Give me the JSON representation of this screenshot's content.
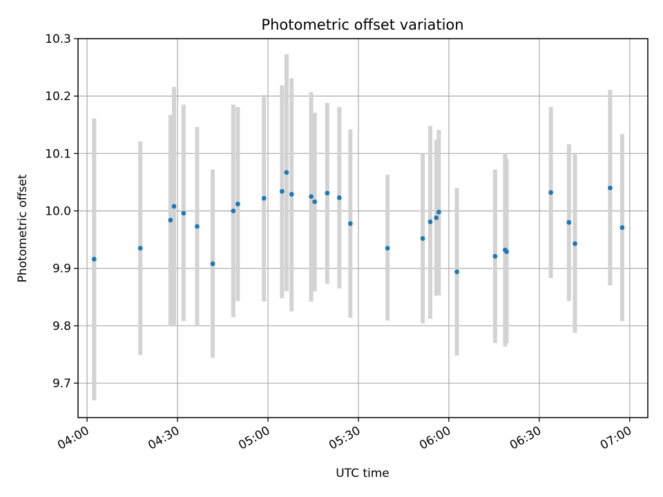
{
  "chart_data": {
    "type": "scatter",
    "title": "Photometric offset variation",
    "xlabel": "UTC time",
    "ylabel": "Photometric offset",
    "grid": true,
    "xlim": [
      "03:57",
      "07:06"
    ],
    "ylim": [
      9.64,
      10.3
    ],
    "x_ticks": [
      "04:00",
      "04:30",
      "05:00",
      "05:30",
      "06:00",
      "06:30",
      "07:00"
    ],
    "y_ticks": [
      "9.7",
      "9.8",
      "9.9",
      "10.0",
      "10.1",
      "10.2",
      "10.3"
    ],
    "colors": {
      "points": "#1f77b4",
      "error_bars": "#d3d3d3",
      "grid": "#b0b0b0"
    },
    "points": [
      {
        "time": "04:02:20",
        "offset": 9.916,
        "err_low": 9.67,
        "err_high": 10.161
      },
      {
        "time": "04:17:40",
        "offset": 9.935,
        "err_low": 9.749,
        "err_high": 10.121
      },
      {
        "time": "04:27:40",
        "offset": 9.984,
        "err_low": 9.8,
        "err_high": 10.167
      },
      {
        "time": "04:28:50",
        "offset": 10.008,
        "err_low": 9.8,
        "err_high": 10.216
      },
      {
        "time": "04:32:00",
        "offset": 9.996,
        "err_low": 9.808,
        "err_high": 10.185
      },
      {
        "time": "04:36:30",
        "offset": 9.973,
        "err_low": 9.8,
        "err_high": 10.146
      },
      {
        "time": "04:41:40",
        "offset": 9.908,
        "err_low": 9.744,
        "err_high": 10.072
      },
      {
        "time": "04:48:30",
        "offset": 10.0,
        "err_low": 9.815,
        "err_high": 10.185
      },
      {
        "time": "04:50:00",
        "offset": 10.012,
        "err_low": 9.843,
        "err_high": 10.181
      },
      {
        "time": "04:58:40",
        "offset": 10.022,
        "err_low": 9.842,
        "err_high": 10.202
      },
      {
        "time": "05:04:40",
        "offset": 10.034,
        "err_low": 9.848,
        "err_high": 10.219
      },
      {
        "time": "05:06:10",
        "offset": 10.067,
        "err_low": 9.86,
        "err_high": 10.273
      },
      {
        "time": "05:07:50",
        "offset": 10.029,
        "err_low": 9.825,
        "err_high": 10.231
      },
      {
        "time": "05:14:20",
        "offset": 10.025,
        "err_low": 9.842,
        "err_high": 10.207
      },
      {
        "time": "05:15:30",
        "offset": 10.016,
        "err_low": 9.86,
        "err_high": 10.171
      },
      {
        "time": "05:19:40",
        "offset": 10.031,
        "err_low": 9.873,
        "err_high": 10.188
      },
      {
        "time": "05:23:40",
        "offset": 10.023,
        "err_low": 9.865,
        "err_high": 10.181
      },
      {
        "time": "05:27:20",
        "offset": 9.978,
        "err_low": 9.814,
        "err_high": 10.142
      },
      {
        "time": "05:39:40",
        "offset": 9.935,
        "err_low": 9.809,
        "err_high": 10.063
      },
      {
        "time": "05:51:20",
        "offset": 9.952,
        "err_low": 9.804,
        "err_high": 10.1
      },
      {
        "time": "05:53:50",
        "offset": 9.981,
        "err_low": 9.812,
        "err_high": 10.148
      },
      {
        "time": "05:55:50",
        "offset": 9.988,
        "err_low": 9.852,
        "err_high": 10.124
      },
      {
        "time": "05:56:40",
        "offset": 9.998,
        "err_low": 9.853,
        "err_high": 10.141
      },
      {
        "time": "06:02:40",
        "offset": 9.894,
        "err_low": 9.748,
        "err_high": 10.04
      },
      {
        "time": "06:15:20",
        "offset": 9.921,
        "err_low": 9.77,
        "err_high": 10.072
      },
      {
        "time": "06:18:40",
        "offset": 9.932,
        "err_low": 9.764,
        "err_high": 10.101
      },
      {
        "time": "06:19:10",
        "offset": 9.929,
        "err_low": 9.77,
        "err_high": 10.09
      },
      {
        "time": "06:33:50",
        "offset": 10.032,
        "err_low": 9.883,
        "err_high": 10.181
      },
      {
        "time": "06:39:50",
        "offset": 9.98,
        "err_low": 9.843,
        "err_high": 10.116
      },
      {
        "time": "06:41:50",
        "offset": 9.943,
        "err_low": 9.788,
        "err_high": 10.099
      },
      {
        "time": "06:53:30",
        "offset": 10.04,
        "err_low": 9.87,
        "err_high": 10.211
      },
      {
        "time": "06:57:30",
        "offset": 9.971,
        "err_low": 9.808,
        "err_high": 10.134
      }
    ]
  }
}
